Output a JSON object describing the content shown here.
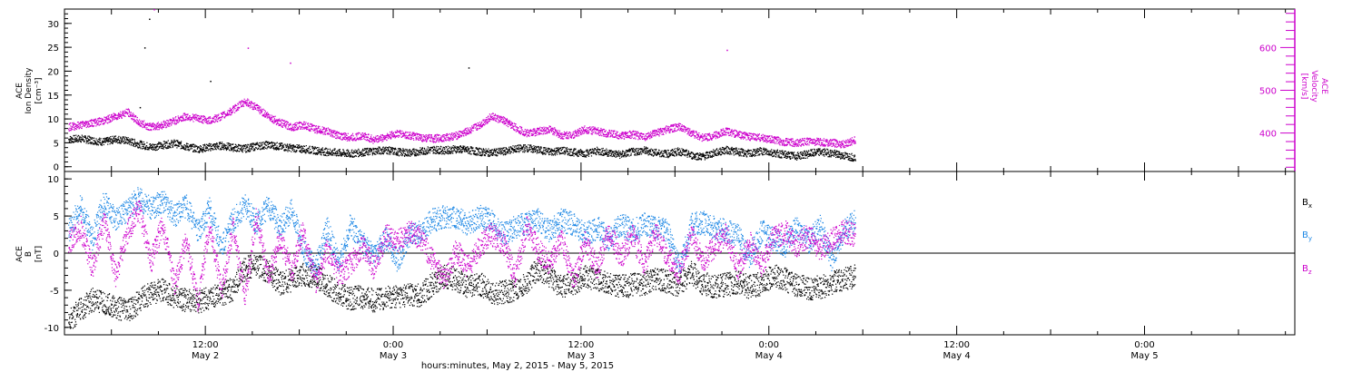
{
  "colors": {
    "black": "#000000",
    "magenta": "#cc00cc",
    "blue": "#1e88e5"
  },
  "chart_data": [
    {
      "type": "scatter",
      "panel": "top",
      "ylabel_left": [
        "ACE",
        "Ion Density",
        "[cm⁻³]"
      ],
      "ylabel_right": [
        "ACE",
        "Velocity",
        "[km/s]"
      ],
      "ylim_left": [
        -1,
        33
      ],
      "ylim_right": [
        310,
        690
      ],
      "yticks_left": [
        0,
        5,
        10,
        15,
        20,
        25,
        30
      ],
      "yticks_right": [
        400,
        500,
        600
      ],
      "series": [
        {
          "name": "",
          "axis": "left",
          "color": "black",
          "x": [
            -0.46,
            -0.33,
            -0.21,
            -0.08,
            0.04,
            0.17,
            0.29,
            0.42,
            0.54,
            0.67,
            0.79,
            0.92,
            1.04,
            1.17,
            1.29,
            1.42,
            1.54,
            1.67,
            1.79,
            1.92,
            2.04,
            2.17,
            2.29,
            2.42,
            2.54,
            2.67,
            2.79,
            2.92,
            3.04,
            3.17,
            3.29,
            3.42,
            3.54,
            3.67,
            3.79,
            3.92,
            4.04,
            4.17,
            4.29,
            4.42,
            4.54,
            4.67,
            4.79,
            4.92,
            5.04,
            5.17,
            5.29,
            5.42,
            5.54,
            5.67,
            5.79,
            5.92,
            6.04,
            6.17,
            6.29,
            6.42,
            6.54,
            6.67,
            6.79,
            6.92,
            7.04,
            7.17,
            7.29,
            7.42,
            7.54,
            7.67,
            7.79,
            7.92
          ],
          "y": [
            5.8,
            6.0,
            5.6,
            5.3,
            5.9,
            5.5,
            4.8,
            4.2,
            4.6,
            5.0,
            4.3,
            3.8,
            4.2,
            4.5,
            4.1,
            3.9,
            4.4,
            4.7,
            4.3,
            4.0,
            3.8,
            3.5,
            3.2,
            3.0,
            2.8,
            3.1,
            3.4,
            3.6,
            3.2,
            3.0,
            3.3,
            3.7,
            3.5,
            3.8,
            3.6,
            3.2,
            3.0,
            3.3,
            3.8,
            4.0,
            3.6,
            3.2,
            3.5,
            3.1,
            2.9,
            3.4,
            3.0,
            2.6,
            3.2,
            3.5,
            3.0,
            2.8,
            3.3,
            2.5,
            2.2,
            3.0,
            3.6,
            3.2,
            2.8,
            3.4,
            3.0,
            2.6,
            2.3,
            2.8,
            3.2,
            2.9,
            2.4,
            2.0
          ],
          "outliers_x": [
            0.4,
            0.35,
            0.3,
            3.8,
            1.05
          ],
          "outliers_y": [
            31,
            25,
            12.5,
            20.8,
            18
          ]
        },
        {
          "name": "",
          "axis": "right",
          "color": "magenta",
          "x": [
            -0.46,
            -0.33,
            -0.21,
            -0.08,
            0.04,
            0.17,
            0.29,
            0.42,
            0.54,
            0.67,
            0.79,
            0.92,
            1.04,
            1.17,
            1.29,
            1.42,
            1.54,
            1.67,
            1.79,
            1.92,
            2.04,
            2.17,
            2.29,
            2.42,
            2.54,
            2.67,
            2.79,
            2.92,
            3.04,
            3.17,
            3.29,
            3.42,
            3.54,
            3.67,
            3.79,
            3.92,
            4.04,
            4.17,
            4.29,
            4.42,
            4.54,
            4.67,
            4.79,
            4.92,
            5.04,
            5.17,
            5.29,
            5.42,
            5.54,
            5.67,
            5.79,
            5.92,
            6.04,
            6.17,
            6.29,
            6.42,
            6.54,
            6.67,
            6.79,
            6.92,
            7.04,
            7.17,
            7.29,
            7.42,
            7.54,
            7.67,
            7.79,
            7.92
          ],
          "y": [
            415,
            420,
            425,
            430,
            440,
            450,
            425,
            415,
            420,
            430,
            440,
            435,
            430,
            440,
            455,
            475,
            460,
            440,
            425,
            415,
            420,
            410,
            405,
            395,
            390,
            395,
            385,
            392,
            400,
            395,
            390,
            388,
            390,
            395,
            405,
            420,
            440,
            430,
            415,
            400,
            405,
            410,
            395,
            398,
            410,
            405,
            400,
            395,
            398,
            392,
            400,
            410,
            415,
            402,
            390,
            395,
            405,
            398,
            392,
            390,
            385,
            380,
            378,
            382,
            380,
            378,
            375,
            385
          ],
          "outliers_x": [
            0.45,
            1.45,
            1.9,
            6.55
          ],
          "outliers_y": [
            690,
            600,
            565,
            595
          ]
        }
      ]
    },
    {
      "type": "scatter",
      "panel": "bottom",
      "ylabel_left": [
        "ACE",
        "B",
        "[nT]"
      ],
      "ylim_left": [
        -11,
        11
      ],
      "yticks_left": [
        -10,
        -5,
        0,
        5,
        10
      ],
      "series": [
        {
          "name": "Bx",
          "color": "black",
          "x": [
            -0.46,
            -0.33,
            -0.21,
            -0.08,
            0.04,
            0.17,
            0.29,
            0.42,
            0.54,
            0.67,
            0.79,
            0.92,
            1.04,
            1.17,
            1.29,
            1.42,
            1.54,
            1.67,
            1.79,
            1.92,
            2.04,
            2.17,
            2.29,
            2.42,
            2.54,
            2.67,
            2.79,
            2.92,
            3.04,
            3.17,
            3.29,
            3.42,
            3.54,
            3.67,
            3.79,
            3.92,
            4.04,
            4.17,
            4.29,
            4.42,
            4.54,
            4.67,
            4.79,
            4.92,
            5.04,
            5.17,
            5.29,
            5.42,
            5.54,
            5.67,
            5.79,
            5.92,
            6.04,
            6.17,
            6.29,
            6.42,
            6.54,
            6.67,
            6.79,
            6.92,
            7.04,
            7.17,
            7.29,
            7.42,
            7.54,
            7.67,
            7.79,
            7.92
          ],
          "y": [
            -9.0,
            -7.5,
            -6.2,
            -6.8,
            -7.2,
            -7.8,
            -6.5,
            -5.2,
            -5.0,
            -5.8,
            -6.3,
            -6.5,
            -6.0,
            -5.5,
            -4.8,
            -2.0,
            -1.5,
            -2.5,
            -4.0,
            -3.5,
            -2.8,
            -3.0,
            -4.2,
            -5.5,
            -6.0,
            -5.8,
            -6.3,
            -5.9,
            -5.7,
            -5.5,
            -5.6,
            -4.0,
            -3.0,
            -3.5,
            -4.5,
            -4.0,
            -5.5,
            -5.2,
            -4.8,
            -3.8,
            -2.0,
            -3.2,
            -4.5,
            -4.0,
            -3.0,
            -3.5,
            -3.8,
            -4.5,
            -4.2,
            -4.0,
            -3.5,
            -3.8,
            -4.2,
            -2.5,
            -4.0,
            -4.5,
            -4.2,
            -3.8,
            -4.5,
            -4.0,
            -3.0,
            -3.5,
            -4.2,
            -4.8,
            -4.5,
            -4.0,
            -3.5,
            -3.0
          ]
        },
        {
          "name": "By",
          "color": "blue",
          "x": [
            -0.46,
            -0.33,
            -0.21,
            -0.08,
            0.04,
            0.17,
            0.29,
            0.42,
            0.54,
            0.67,
            0.79,
            0.92,
            1.04,
            1.17,
            1.29,
            1.42,
            1.54,
            1.67,
            1.79,
            1.92,
            2.04,
            2.17,
            2.29,
            2.42,
            2.54,
            2.67,
            2.79,
            2.92,
            3.04,
            3.17,
            3.29,
            3.42,
            3.54,
            3.67,
            3.79,
            3.92,
            4.04,
            4.17,
            4.29,
            4.42,
            4.54,
            4.67,
            4.79,
            4.92,
            5.04,
            5.17,
            5.29,
            5.42,
            5.54,
            5.67,
            5.79,
            5.92,
            6.04,
            6.17,
            6.29,
            6.42,
            6.54,
            6.67,
            6.79,
            6.92,
            7.04,
            7.17,
            7.29,
            7.42,
            7.54,
            7.67,
            7.79,
            7.92
          ],
          "y": [
            3.0,
            6.5,
            2.0,
            7.0,
            4.5,
            6.0,
            7.5,
            6.0,
            7.2,
            5.0,
            6.5,
            3.0,
            6.0,
            1.0,
            4.5,
            6.5,
            4.0,
            6.5,
            3.5,
            6.0,
            0.5,
            -2.0,
            3.5,
            -1.5,
            4.0,
            1.5,
            -0.5,
            2.0,
            -1.0,
            2.5,
            3.0,
            4.5,
            5.0,
            4.8,
            4.0,
            5.0,
            4.5,
            2.5,
            3.5,
            4.0,
            4.5,
            3.0,
            4.5,
            4.0,
            2.5,
            3.5,
            2.0,
            4.0,
            3.0,
            4.0,
            3.5,
            3.0,
            -2.0,
            3.8,
            4.2,
            3.5,
            3.0,
            2.5,
            -0.5,
            3.0,
            2.0,
            1.0,
            3.5,
            1.5,
            3.8,
            -1.0,
            3.0,
            4.5
          ]
        },
        {
          "name": "Bz",
          "color": "magenta",
          "x": [
            -0.46,
            -0.33,
            -0.21,
            -0.08,
            0.04,
            0.17,
            0.29,
            0.42,
            0.54,
            0.67,
            0.79,
            0.92,
            1.04,
            1.17,
            1.29,
            1.42,
            1.54,
            1.67,
            1.79,
            1.92,
            2.04,
            2.17,
            2.29,
            2.42,
            2.54,
            2.67,
            2.79,
            2.92,
            3.04,
            3.17,
            3.29,
            3.42,
            3.54,
            3.67,
            3.79,
            3.92,
            4.04,
            4.17,
            4.29,
            4.42,
            4.54,
            4.67,
            4.79,
            4.92,
            5.04,
            5.17,
            5.29,
            5.42,
            5.54,
            5.67,
            5.79,
            5.92,
            6.04,
            6.17,
            6.29,
            6.42,
            6.54,
            6.67,
            6.79,
            6.92,
            7.04,
            7.17,
            7.29,
            7.42,
            7.54,
            7.67,
            7.79,
            7.92
          ],
          "y": [
            1.5,
            3.5,
            -2.0,
            4.5,
            -3.0,
            3.0,
            6.0,
            -1.0,
            4.0,
            -4.5,
            2.0,
            -6.5,
            4.0,
            -5.0,
            3.5,
            -6.0,
            5.0,
            -3.0,
            2.0,
            -2.5,
            3.5,
            -4.0,
            0.5,
            -3.0,
            -1.5,
            1.0,
            -2.0,
            2.5,
            1.5,
            3.0,
            2.0,
            -1.0,
            -3.5,
            0.5,
            -2.0,
            1.0,
            2.5,
            1.5,
            -3.0,
            3.5,
            0.5,
            -1.5,
            2.0,
            -3.5,
            1.5,
            -2.0,
            3.0,
            -0.5,
            2.5,
            -1.5,
            3.0,
            -0.5,
            -2.5,
            2.5,
            -1.0,
            1.0,
            2.5,
            -2.0,
            1.5,
            -1.5,
            2.0,
            3.0,
            1.0,
            2.5,
            0.5,
            2.0,
            3.0,
            2.5
          ]
        }
      ],
      "legend": [
        "Bx",
        "By",
        "Bz"
      ]
    }
  ],
  "time_axis": {
    "xlabel": "hours:minutes, May  2, 2015 - May  5, 2015",
    "major_ticks": [
      {
        "t": 1,
        "line1": "12:00",
        "line2": "May 2"
      },
      {
        "t": 3,
        "line1": "0:00",
        "line2": "May 3"
      },
      {
        "t": 5,
        "line1": "12:00",
        "line2": "May 3"
      },
      {
        "t": 7,
        "line1": "0:00",
        "line2": "May 4"
      },
      {
        "t": 9,
        "line1": "12:00",
        "line2": "May 4"
      },
      {
        "t": 11,
        "line1": "0:00",
        "line2": "May 5"
      }
    ],
    "xlim": [
      -0.5,
      12.6
    ]
  }
}
